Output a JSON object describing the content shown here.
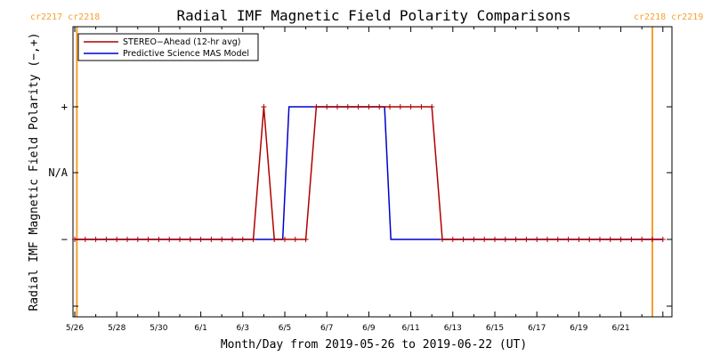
{
  "colors": {
    "stereo": "#b00000",
    "model": "#0000cc",
    "carrington": "#f5a030",
    "axis": "#000000"
  },
  "carrington": {
    "left_label": "cr2217  cr2218",
    "right_label": "cr2218  cr2219",
    "line_days": [
      0.1,
      27.5
    ]
  },
  "chart_data": {
    "type": "line",
    "title": "Radial IMF Magnetic Field Polarity Comparisons",
    "xlabel": "Month/Day from 2019-05-26 to 2019-06-22 (UT)",
    "ylabel": "Radial IMF Magnetic Field Polarity (−,+)",
    "x_ticks": [
      {
        "day": 0,
        "label": "5/26"
      },
      {
        "day": 2,
        "label": "5/28"
      },
      {
        "day": 4,
        "label": "5/30"
      },
      {
        "day": 6,
        "label": "6/1"
      },
      {
        "day": 8,
        "label": "6/3"
      },
      {
        "day": 10,
        "label": "6/5"
      },
      {
        "day": 12,
        "label": "6/7"
      },
      {
        "day": 14,
        "label": "6/9"
      },
      {
        "day": 16,
        "label": "6/11"
      },
      {
        "day": 18,
        "label": "6/13"
      },
      {
        "day": 20,
        "label": "6/15"
      },
      {
        "day": 22,
        "label": "6/17"
      },
      {
        "day": 24,
        "label": "6/19"
      },
      {
        "day": 26,
        "label": "6/21"
      }
    ],
    "xlim": [
      0,
      28
    ],
    "y_ticks": [
      {
        "value": -1,
        "label": "−"
      },
      {
        "value": 0,
        "label": "N/A"
      },
      {
        "value": 1,
        "label": "+"
      }
    ],
    "ylim": [
      -2,
      2
    ],
    "legend": {
      "placement": "top-left"
    },
    "series": [
      {
        "name": "STEREO−Ahead (12-hr avg)",
        "color_key": "stereo",
        "markers": true,
        "x": [
          0.0,
          0.5,
          1.0,
          1.5,
          2.0,
          2.5,
          3.0,
          3.5,
          4.0,
          4.5,
          5.0,
          5.5,
          6.0,
          6.5,
          7.0,
          7.5,
          8.0,
          8.5,
          9.0,
          9.5,
          10.0,
          10.5,
          11.0,
          11.5,
          12.0,
          12.5,
          13.0,
          13.5,
          14.0,
          14.5,
          15.0,
          15.5,
          16.0,
          16.5,
          17.0,
          17.5,
          18.0,
          18.5,
          19.0,
          19.5,
          20.0,
          20.5,
          21.0,
          21.5,
          22.0,
          22.5,
          23.0,
          23.5,
          24.0,
          24.5,
          25.0,
          25.5,
          26.0,
          26.5,
          27.0,
          27.5,
          28.0
        ],
        "y": [
          -1,
          -1,
          -1,
          -1,
          -1,
          -1,
          -1,
          -1,
          -1,
          -1,
          -1,
          -1,
          -1,
          -1,
          -1,
          -1,
          -1,
          -1,
          1,
          -1,
          -1,
          -1,
          -1,
          1,
          1,
          1,
          1,
          1,
          1,
          1,
          1,
          1,
          1,
          1,
          1,
          -1,
          -1,
          -1,
          -1,
          -1,
          -1,
          -1,
          -1,
          -1,
          -1,
          -1,
          -1,
          -1,
          -1,
          -1,
          -1,
          -1,
          -1,
          -1,
          -1,
          -1,
          -1
        ]
      },
      {
        "name": "Predictive Science MAS Model",
        "color_key": "model",
        "markers": false,
        "x": [
          0.0,
          9.9,
          10.2,
          14.75,
          15.05,
          28.0
        ],
        "y": [
          -1,
          -1,
          1,
          1,
          -1,
          -1
        ]
      }
    ]
  }
}
